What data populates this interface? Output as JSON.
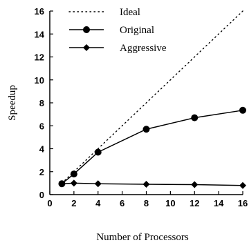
{
  "chart_data": {
    "type": "line",
    "xlabel": "Number of Processors",
    "ylabel": "Speedup",
    "xlim": [
      0,
      16
    ],
    "ylim": [
      0,
      16
    ],
    "xticks": [
      0,
      2,
      4,
      6,
      8,
      10,
      12,
      14,
      16
    ],
    "yticks": [
      0,
      2,
      4,
      6,
      8,
      10,
      12,
      14,
      16
    ],
    "grid": false,
    "legend_position": "top-left",
    "series": [
      {
        "name": "Ideal",
        "style": "dotted",
        "marker": "none",
        "x": [
          1,
          16
        ],
        "y": [
          1,
          16
        ]
      },
      {
        "name": "Original",
        "style": "solid",
        "marker": "circle",
        "x": [
          1,
          2,
          4,
          8,
          12,
          16
        ],
        "y": [
          0.95,
          1.8,
          3.7,
          5.7,
          6.7,
          7.35
        ]
      },
      {
        "name": "Aggressive",
        "style": "solid",
        "marker": "diamond",
        "x": [
          1,
          2,
          4,
          8,
          12,
          16
        ],
        "y": [
          0.95,
          1.0,
          0.95,
          0.9,
          0.87,
          0.8
        ]
      }
    ]
  }
}
